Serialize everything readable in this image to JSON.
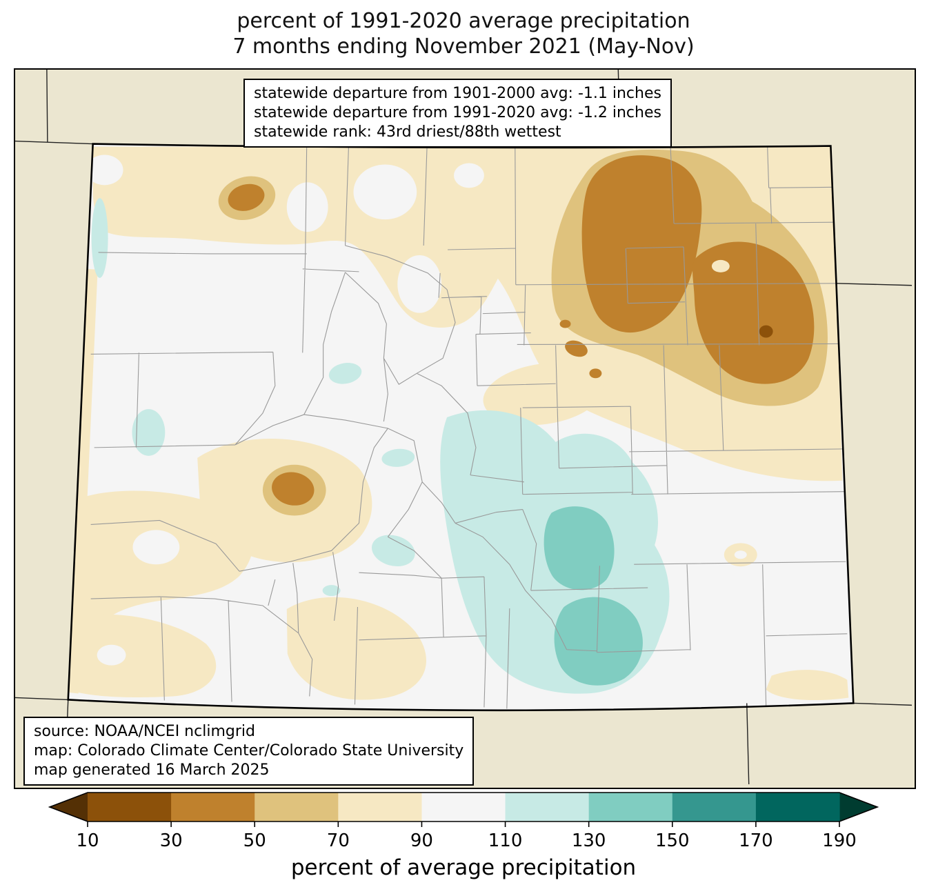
{
  "title": {
    "line1": "percent of 1991-2020 average precipitation",
    "line2": "7 months ending November 2021 (May-Nov)"
  },
  "stats_box": {
    "lines": [
      "statewide departure from 1901-2000 avg: -1.1 inches",
      "statewide departure from 1991-2020 avg: -1.2 inches",
      "statewide rank: 43rd driest/88th wettest"
    ]
  },
  "source_box": {
    "lines": [
      "source: NOAA/NCEI nclimgrid",
      "map: Colorado Climate Center/Colorado State University",
      "map generated 16 March 2025"
    ]
  },
  "colorbar": {
    "label": "percent of average precipitation",
    "ticks": [
      "10",
      "30",
      "50",
      "70",
      "90",
      "110",
      "130",
      "150",
      "170",
      "190"
    ],
    "colors": [
      "#543005",
      "#8c510a",
      "#bf812d",
      "#dfc27d",
      "#f6e8c3",
      "#f5f5f5",
      "#c7eae5",
      "#80cdc1",
      "#35978f",
      "#01665e",
      "#003c30"
    ]
  },
  "map": {
    "region": "Colorado",
    "surround_color": "#ebe6d0",
    "county_line_color": "#999999",
    "state_line_color": "#222222",
    "border_color": "#000000"
  }
}
